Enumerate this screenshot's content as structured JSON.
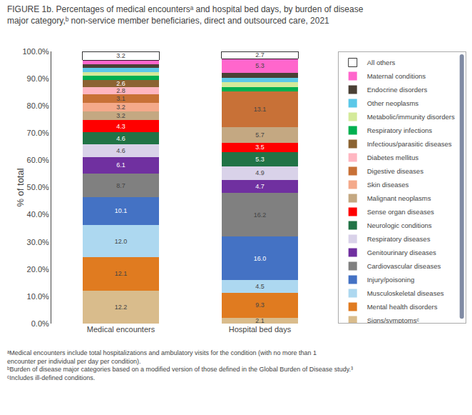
{
  "chart_data": {
    "type": "bar",
    "title": "FIGURE 1b. Percentages of medical encountersᵃ and hospital bed days, by burden of disease major category,ᵇ non-service member beneficiaries, direct and outsourced care, 2021",
    "categories": [
      "Medical encounters",
      "Hospital bed days"
    ],
    "y_label": "% of total",
    "stacked": true,
    "data_labels": true,
    "grid": false,
    "legend": "right",
    "ylim": [
      0,
      100
    ],
    "yticks": [
      {
        "value": 0,
        "label": "0.0%"
      },
      {
        "value": 10,
        "label": "10.0%"
      },
      {
        "value": 20,
        "label": "20.0%"
      },
      {
        "value": 30,
        "label": "30.0%"
      },
      {
        "value": 40,
        "label": "40.0%"
      },
      {
        "value": 50,
        "label": "50.0%"
      },
      {
        "value": 60,
        "label": "60.0%"
      },
      {
        "value": 70,
        "label": "70.0%"
      },
      {
        "value": 80,
        "label": "80.0%"
      },
      {
        "value": 90,
        "label": "90.0%"
      },
      {
        "value": 100,
        "label": "100.0%"
      }
    ],
    "series": [
      {
        "name": "Signs/symptomsᶜ",
        "color": "#d9bc8c",
        "values": [
          12.2,
          2.1
        ],
        "value_labels": [
          "12.2",
          "2.1"
        ]
      },
      {
        "name": "Mental health disorders",
        "color": "#e07b20",
        "values": [
          12.1,
          9.3
        ],
        "value_labels": [
          "12.1",
          "9.3"
        ]
      },
      {
        "name": "Musculoskeletal diseases",
        "color": "#add8f0",
        "values": [
          12.0,
          4.5
        ],
        "value_labels": [
          "12.0",
          "4.5"
        ]
      },
      {
        "name": "Injury/poisoning",
        "color": "#4472c4",
        "values": [
          10.1,
          16.0
        ],
        "value_labels": [
          "10.1",
          "16.0"
        ]
      },
      {
        "name": "Cardiovascular diseases",
        "color": "#808080",
        "values": [
          8.7,
          16.2
        ],
        "value_labels": [
          "8.7",
          "16.2"
        ]
      },
      {
        "name": "Genitourinary diseases",
        "color": "#7030a0",
        "values": [
          6.1,
          4.7
        ],
        "value_labels": [
          "6.1",
          "4.7"
        ]
      },
      {
        "name": "Respiratory diseases",
        "color": "#d9d2e9",
        "values": [
          4.6,
          4.9
        ],
        "value_labels": [
          "4.6",
          "4.9"
        ]
      },
      {
        "name": "Neurologic conditions",
        "color": "#217346",
        "values": [
          4.6,
          5.3
        ],
        "value_labels": [
          "4.6",
          "5.3"
        ]
      },
      {
        "name": "Sense organ diseases",
        "color": "#ff0000",
        "values": [
          4.3,
          3.5
        ],
        "value_labels": [
          "4.3",
          "3.5"
        ]
      },
      {
        "name": "Malignant neoplasms",
        "color": "#c4a882",
        "values": [
          3.2,
          5.7
        ],
        "value_labels": [
          "3.2",
          "5.7"
        ]
      },
      {
        "name": "Skin diseases",
        "color": "#f4a98a",
        "values": [
          3.2,
          0.0
        ],
        "value_labels": [
          "3.2",
          null
        ]
      },
      {
        "name": "Digestive diseases",
        "color": "#c87137",
        "values": [
          3.1,
          13.1
        ],
        "value_labels": [
          "3.1",
          "13.1"
        ]
      },
      {
        "name": "Diabetes mellitus",
        "color": "#ffb6c1",
        "values": [
          2.8,
          0.0
        ],
        "value_labels": [
          "2.8",
          null
        ]
      },
      {
        "name": "Infectious/parasitic diseases",
        "color": "#8B6332",
        "values": [
          2.6,
          0.0
        ],
        "value_labels": [
          "2.6",
          null
        ]
      },
      {
        "name": "Respiratory infections",
        "color": "#00b050",
        "values": [
          1.44,
          1.675
        ],
        "value_labels": [
          null,
          null
        ]
      },
      {
        "name": "Metabolic/immunity disorders",
        "color": "#d4ea9a",
        "values": [
          1.44,
          1.675
        ],
        "value_labels": [
          null,
          null
        ]
      },
      {
        "name": "Other neoplasms",
        "color": "#5bc8e8",
        "values": [
          1.44,
          1.675
        ],
        "value_labels": [
          null,
          null
        ]
      },
      {
        "name": "Endocrine disorders",
        "color": "#4a4035",
        "values": [
          1.44,
          1.675
        ],
        "value_labels": [
          null,
          null
        ]
      },
      {
        "name": "Maternal conditions",
        "color": "#ff66cc",
        "values": [
          1.44,
          5.3
        ],
        "value_labels": [
          null,
          "5.3"
        ]
      },
      {
        "name": "All others",
        "color": "#ffffff",
        "values": [
          3.2,
          2.7
        ],
        "value_labels": [
          "3.2",
          "2.7"
        ]
      }
    ],
    "annotations": [
      "ᵃMedical encounters include total hospitalizations and ambulatory visits for the condition (with no more than 1 encounter per individual per day per condition).",
      "ᵇBurden of disease major categories based on a modified version of those defined in the Global Burden of Disease study.³",
      "ᶜIncludes ill-defined conditions."
    ]
  }
}
